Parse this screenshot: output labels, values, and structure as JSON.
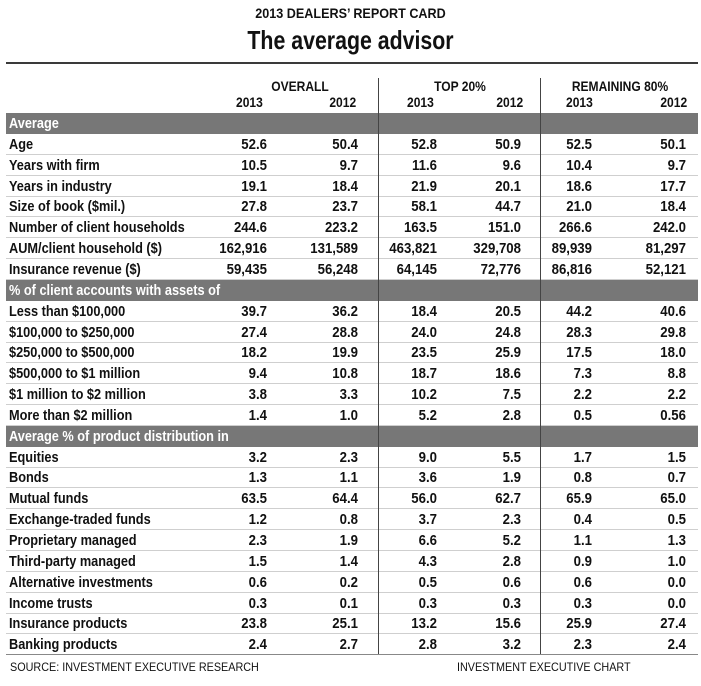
{
  "kicker": "2013 DEALERS’ REPORT CARD",
  "title": "The average advisor",
  "column_groups": [
    {
      "label": "OVERALL",
      "years": [
        "2013",
        "2012"
      ]
    },
    {
      "label": "TOP 20%",
      "years": [
        "2013",
        "2012"
      ]
    },
    {
      "label": "REMAINING 80%",
      "years": [
        "2013",
        "2012"
      ]
    }
  ],
  "footer": {
    "source": "SOURCE: INVESTMENT EXECUTIVE RESEARCH",
    "credit": "INVESTMENT EXECUTIVE CHART"
  },
  "chart_data": {
    "type": "table",
    "title": "The average advisor",
    "subtitle": "2013 DEALERS’ REPORT CARD",
    "columns": [
      "Overall 2013",
      "Overall 2012",
      "Top 20% 2013",
      "Top 20% 2012",
      "Remaining 80% 2013",
      "Remaining 80% 2012"
    ],
    "sections": [
      {
        "heading": "Average",
        "rows": [
          {
            "label": "Age",
            "values": [
              "52.6",
              "50.4",
              "52.8",
              "50.9",
              "52.5",
              "50.1"
            ]
          },
          {
            "label": "Years with firm",
            "values": [
              "10.5",
              "9.7",
              "11.6",
              "9.6",
              "10.4",
              "9.7"
            ]
          },
          {
            "label": "Years in industry",
            "values": [
              "19.1",
              "18.4",
              "21.9",
              "20.1",
              "18.6",
              "17.7"
            ]
          },
          {
            "label": "Size of book ($mil.)",
            "values": [
              "27.8",
              "23.7",
              "58.1",
              "44.7",
              "21.0",
              "18.4"
            ]
          },
          {
            "label": "Number of client households",
            "values": [
              "244.6",
              "223.2",
              "163.5",
              "151.0",
              "266.6",
              "242.0"
            ]
          },
          {
            "label": "AUM/client household ($)",
            "values": [
              "162,916",
              "131,589",
              "463,821",
              "329,708",
              "89,939",
              "81,297"
            ]
          },
          {
            "label": "Insurance revenue ($)",
            "values": [
              "59,435",
              "56,248",
              "64,145",
              "72,776",
              "86,816",
              "52,121"
            ]
          }
        ]
      },
      {
        "heading": "% of client accounts with assets of",
        "rows": [
          {
            "label": "Less than $100,000",
            "values": [
              "39.7",
              "36.2",
              "18.4",
              "20.5",
              "44.2",
              "40.6"
            ]
          },
          {
            "label": "$100,000 to $250,000",
            "values": [
              "27.4",
              "28.8",
              "24.0",
              "24.8",
              "28.3",
              "29.8"
            ]
          },
          {
            "label": "$250,000 to $500,000",
            "values": [
              "18.2",
              "19.9",
              "23.5",
              "25.9",
              "17.5",
              "18.0"
            ]
          },
          {
            "label": "$500,000 to $1 million",
            "values": [
              "9.4",
              "10.8",
              "18.7",
              "18.6",
              "7.3",
              "8.8"
            ]
          },
          {
            "label": "$1 million to $2 million",
            "values": [
              "3.8",
              "3.3",
              "10.2",
              "7.5",
              "2.2",
              "2.2"
            ]
          },
          {
            "label": "More than $2 million",
            "values": [
              "1.4",
              "1.0",
              "5.2",
              "2.8",
              "0.5",
              "0.56"
            ]
          }
        ]
      },
      {
        "heading": "Average % of product distribution in",
        "rows": [
          {
            "label": "Equities",
            "values": [
              "3.2",
              "2.3",
              "9.0",
              "5.5",
              "1.7",
              "1.5"
            ]
          },
          {
            "label": "Bonds",
            "values": [
              "1.3",
              "1.1",
              "3.6",
              "1.9",
              "0.8",
              "0.7"
            ]
          },
          {
            "label": "Mutual funds",
            "values": [
              "63.5",
              "64.4",
              "56.0",
              "62.7",
              "65.9",
              "65.0"
            ]
          },
          {
            "label": "Exchange-traded funds",
            "values": [
              "1.2",
              "0.8",
              "3.7",
              "2.3",
              "0.4",
              "0.5"
            ]
          },
          {
            "label": "Proprietary managed",
            "values": [
              "2.3",
              "1.9",
              "6.6",
              "5.2",
              "1.1",
              "1.3"
            ]
          },
          {
            "label": "Third-party managed",
            "values": [
              "1.5",
              "1.4",
              "4.3",
              "2.8",
              "0.9",
              "1.0"
            ]
          },
          {
            "label": "Alternative investments",
            "values": [
              "0.6",
              "0.2",
              "0.5",
              "0.6",
              "0.6",
              "0.0"
            ]
          },
          {
            "label": "Income trusts",
            "values": [
              "0.3",
              "0.1",
              "0.3",
              "0.3",
              "0.3",
              "0.0"
            ]
          },
          {
            "label": "Insurance products",
            "values": [
              "23.8",
              "25.1",
              "13.2",
              "15.6",
              "25.9",
              "27.4"
            ]
          },
          {
            "label": "Banking products",
            "values": [
              "2.4",
              "2.7",
              "2.8",
              "3.2",
              "2.3",
              "2.4"
            ]
          }
        ]
      }
    ]
  }
}
